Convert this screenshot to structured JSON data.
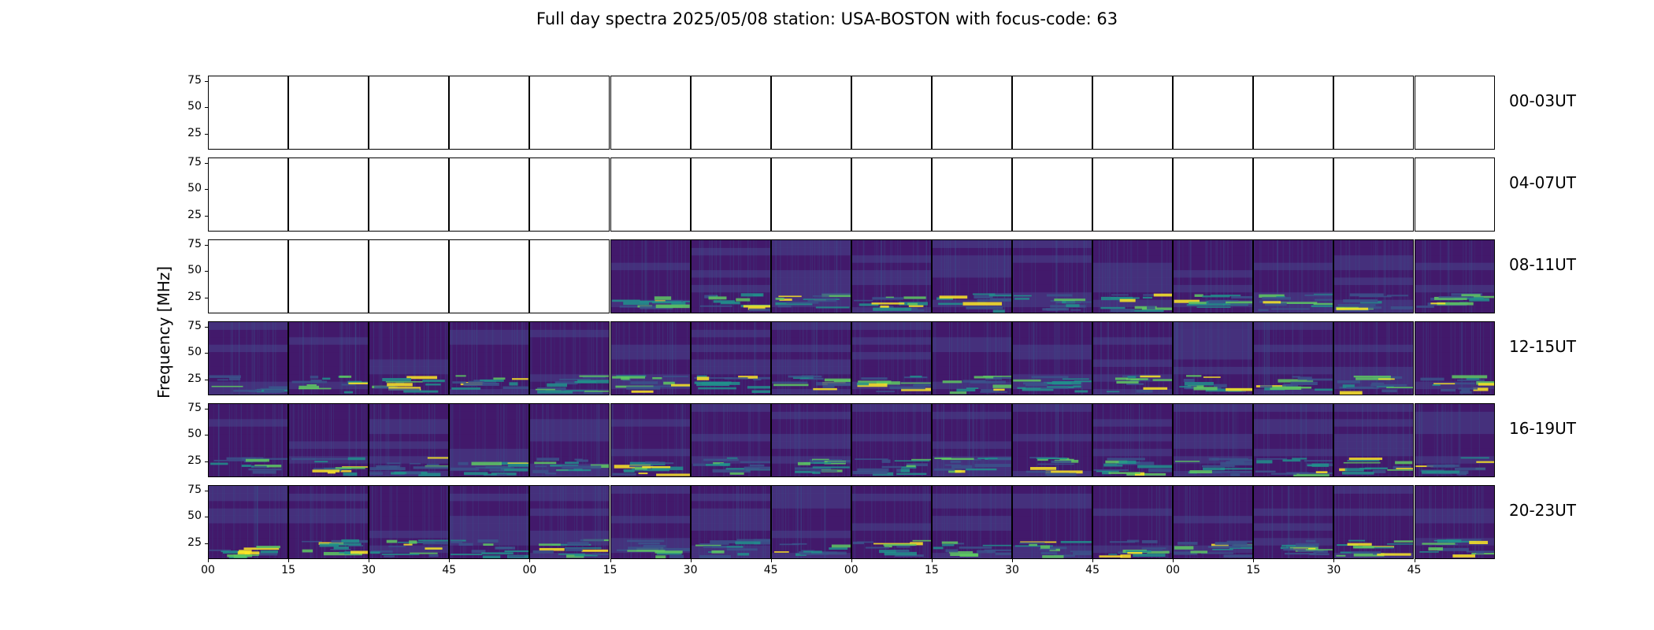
{
  "title": "Full day spectra 2025/05/08 station: USA-BOSTON with focus-code: 63",
  "chart_data": {
    "type": "heatmap",
    "title": "Full day spectra 2025/05/08 station: USA-BOSTON with focus-code: 63",
    "ylabel": "Frequency [MHz]",
    "xlabel": "",
    "yticks": [
      "75",
      "50",
      "25"
    ],
    "ylim": [
      10,
      80
    ],
    "xticks": [
      "00",
      "15",
      "30",
      "45",
      "00",
      "15",
      "30",
      "45",
      "00",
      "15",
      "30",
      "45",
      "00",
      "15",
      "30",
      "45"
    ],
    "panels_per_row": 16,
    "panel_minutes": 15,
    "rows": [
      {
        "label": "00-03UT",
        "data_panels": []
      },
      {
        "label": "04-07UT",
        "data_panels": []
      },
      {
        "label": "08-11UT",
        "data_panels": [
          5,
          6,
          7,
          8,
          9,
          10,
          11,
          12,
          13,
          14,
          15
        ]
      },
      {
        "label": "12-15UT",
        "data_panels": [
          0,
          1,
          2,
          3,
          4,
          5,
          6,
          7,
          8,
          9,
          10,
          11,
          12,
          13,
          14,
          15
        ]
      },
      {
        "label": "16-19UT",
        "data_panels": [
          0,
          1,
          2,
          3,
          4,
          5,
          6,
          7,
          8,
          9,
          10,
          11,
          12,
          13,
          14,
          15
        ]
      },
      {
        "label": "20-23UT",
        "data_panels": [
          0,
          1,
          2,
          3,
          4,
          5,
          6,
          7,
          8,
          9,
          10,
          11,
          12,
          13,
          14,
          15
        ]
      }
    ],
    "colormap": [
      "#440154",
      "#3b528b",
      "#21918c",
      "#5ec962",
      "#fde725"
    ],
    "grid": false
  }
}
